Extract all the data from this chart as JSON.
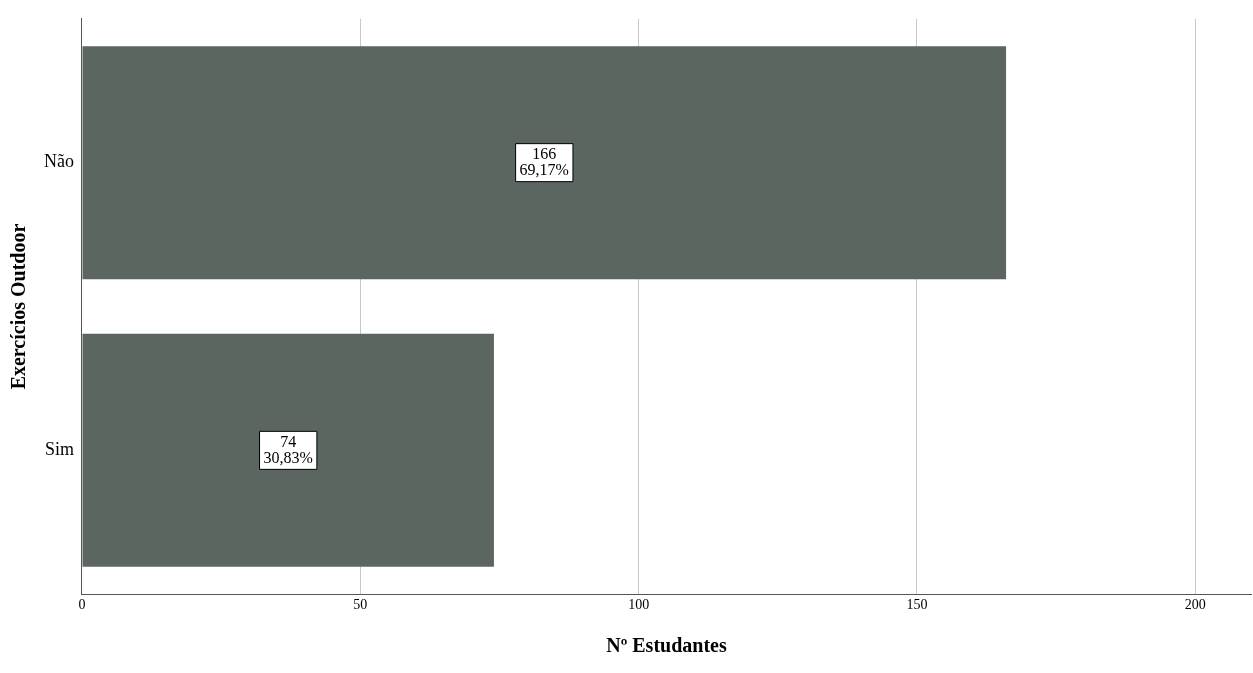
{
  "chart_data": {
    "type": "bar",
    "orientation": "horizontal",
    "xlabel": "Nº Estudantes",
    "ylabel": "Exercícios Outdoor",
    "categories": [
      "Não",
      "Sim"
    ],
    "values": [
      166,
      74
    ],
    "color": "#5b6660",
    "value_labels": [
      "166\n69,17%",
      "74\n30,83%"
    ],
    "xlim": [
      0,
      210
    ],
    "xticks": [
      0,
      50,
      100,
      150,
      200
    ],
    "grid": "x",
    "legend": false
  }
}
